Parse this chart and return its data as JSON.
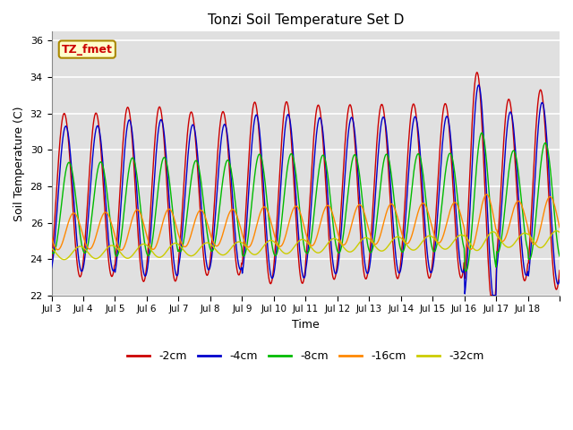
{
  "title": "Tonzi Soil Temperature Set D",
  "xlabel": "Time",
  "ylabel": "Soil Temperature (C)",
  "ylim": [
    22,
    36.5
  ],
  "yticks": [
    22,
    24,
    26,
    28,
    30,
    32,
    34,
    36
  ],
  "xtick_labels": [
    "Jul 3",
    "Jul 4",
    "Jul 5",
    "Jul 6",
    "Jul 7",
    "Jul 8",
    "Jul 9",
    "Jul 10",
    "Jul 11",
    "Jul 12",
    "Jul 13",
    "Jul 14",
    "Jul 15",
    "Jul 16",
    "Jul 17",
    "Jul 18"
  ],
  "legend_labels": [
    "-2cm",
    "-4cm",
    "-8cm",
    "-16cm",
    "-32cm"
  ],
  "line_colors": [
    "#cc0000",
    "#0000cc",
    "#00bb00",
    "#ff8800",
    "#cccc00"
  ],
  "annotation_text": "TZ_fmet",
  "annotation_color": "#cc0000",
  "annotation_bg": "#ffffcc",
  "annotation_border": "#aa8800",
  "plot_bg_color": "#e0e0e0",
  "fig_bg_color": "#ffffff",
  "grid_color": "#ffffff",
  "n_days": 16,
  "ppd": 48,
  "base_mean": 27.5,
  "amp_2cm": [
    4.5,
    4.5,
    4.8,
    4.8,
    4.5,
    4.5,
    5.0,
    5.0,
    4.8,
    4.8,
    4.8,
    4.8,
    4.8,
    6.5,
    5.0,
    5.5
  ],
  "amp_4cm": [
    4.0,
    4.0,
    4.3,
    4.3,
    4.0,
    4.0,
    4.5,
    4.5,
    4.3,
    4.3,
    4.3,
    4.3,
    4.3,
    6.0,
    4.5,
    5.0
  ],
  "amp_8cm": [
    2.5,
    2.5,
    2.7,
    2.7,
    2.5,
    2.5,
    2.8,
    2.8,
    2.7,
    2.7,
    2.7,
    2.7,
    2.7,
    3.8,
    2.8,
    3.2
  ],
  "amp_16cm": [
    1.0,
    1.0,
    1.1,
    1.1,
    1.0,
    1.0,
    1.1,
    1.1,
    1.1,
    1.1,
    1.1,
    1.1,
    1.1,
    1.5,
    1.1,
    1.3
  ],
  "amp_32cm": [
    0.35,
    0.35,
    0.38,
    0.38,
    0.35,
    0.35,
    0.38,
    0.38,
    0.38,
    0.38,
    0.38,
    0.38,
    0.38,
    0.5,
    0.38,
    0.45
  ]
}
